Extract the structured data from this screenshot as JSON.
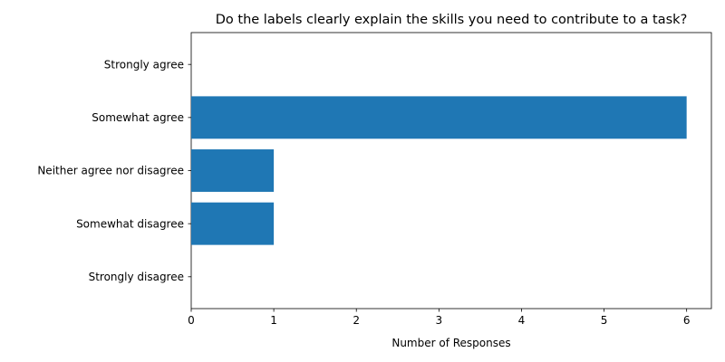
{
  "chart_data": {
    "type": "bar",
    "orientation": "horizontal",
    "title": "Do the labels clearly explain the skills you need to contribute to a task?",
    "xlabel": "Number of Responses",
    "ylabel": "",
    "categories": [
      "Strongly agree",
      "Somewhat agree",
      "Neither agree nor disagree",
      "Somewhat disagree",
      "Strongly disagree"
    ],
    "values": [
      0,
      6,
      1,
      1,
      0
    ],
    "xlim": [
      0,
      6.3
    ],
    "xticks": [
      0,
      1,
      2,
      3,
      4,
      5,
      6
    ],
    "grid": false,
    "legend": "none",
    "bar_color": "#1f77b4"
  }
}
